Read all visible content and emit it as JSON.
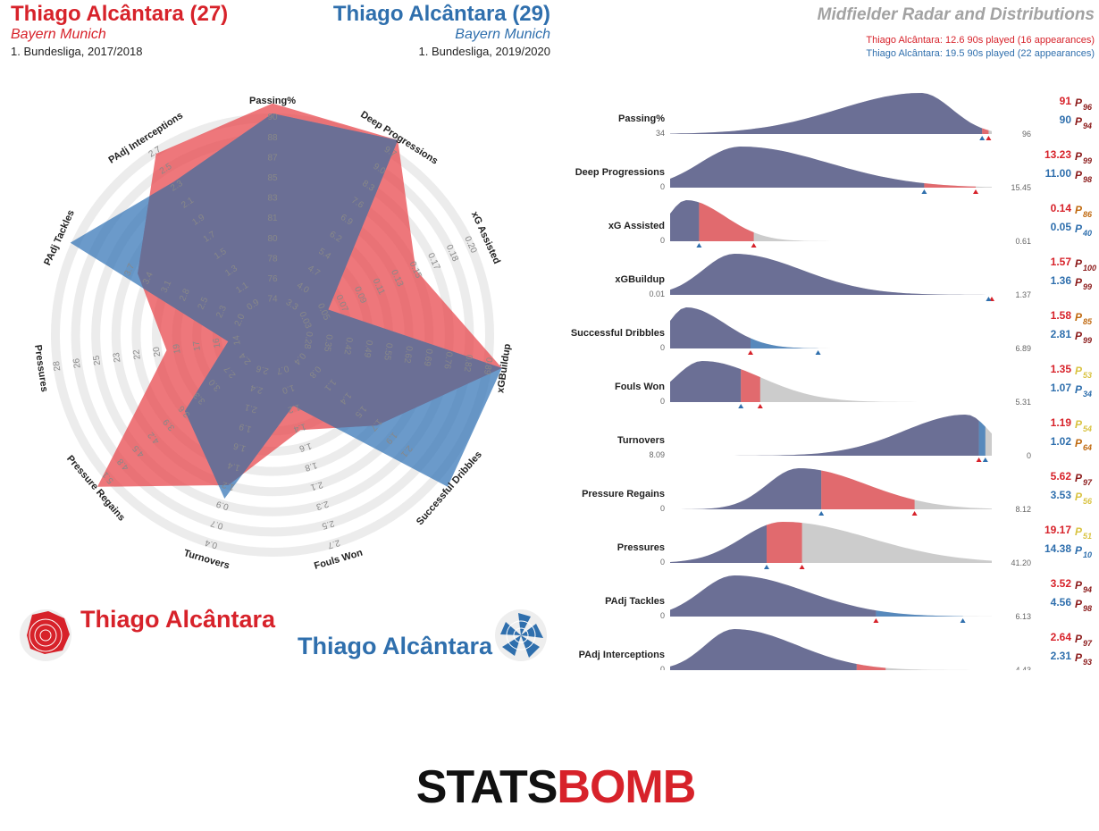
{
  "header": {
    "player1_name": "Thiago Alcântara (27)",
    "player1_club": "Bayern Munich",
    "player1_competition": "1. Bundesliga, 2017/2018",
    "player2_name": "Thiago Alcântara (29)",
    "player2_club": "Bayern Munich",
    "player2_competition": "1. Bundesliga, 2019/2020",
    "title": "Midfielder Radar and Distributions",
    "player1_minutes": "Thiago Alcântara: 12.6 90s played (16 appearances)",
    "player2_minutes": "Thiago Alcântara: 19.5 90s played (22 appearances)"
  },
  "legend": {
    "player1_label": "Thiago Alcântara",
    "player2_label": "Thiago Alcântara"
  },
  "footer": {
    "logo_text": "STATSBOMB"
  },
  "colors": {
    "player1": "#e8494f",
    "player2": "#3a78b8",
    "overlap": "#6b6f95",
    "text_p1": "#d7222a",
    "text_p2": "#2f6fad",
    "dist_grey": "#cccccc"
  },
  "chart_data": [
    {
      "type": "radar",
      "metrics": [
        "Passing%",
        "Deep Progressions",
        "xG Assisted",
        "xGBuildup",
        "Successful Dribbles",
        "Fouls Won",
        "Turnovers",
        "Pressure Regains",
        "Pressures",
        "PAdj Tackles",
        "PAdj Interceptions"
      ],
      "scales": [
        [
          "74",
          "76",
          "78",
          "80",
          "81",
          "83",
          "85",
          "87",
          "88",
          "90"
        ],
        [
          "3.3",
          "4.0",
          "4.7",
          "5.4",
          "6.2",
          "6.9",
          "7.6",
          "8.3",
          "9.0",
          "9.7"
        ],
        [
          "0.03",
          "0.05",
          "0.07",
          "0.09",
          "0.11",
          "0.13",
          "0.15",
          "0.17",
          "0.18",
          "0.20"
        ],
        [
          "0.28",
          "0.35",
          "0.42",
          "0.49",
          "0.55",
          "0.62",
          "0.69",
          "0.76",
          "0.82",
          "0.89"
        ],
        [
          "0.4",
          "0.8",
          "1.1",
          "1.4",
          "1.5",
          "1.7",
          "1.9",
          "2.1",
          "",
          ""
        ],
        [
          "0.7",
          "1.0",
          "1.2",
          "1.4",
          "1.6",
          "1.8",
          "2.1",
          "2.3",
          "2.5",
          "2.7"
        ],
        [
          "2.6",
          "2.4",
          "2.1",
          "1.9",
          "1.6",
          "1.4",
          "1.2",
          "0.9",
          "0.7",
          "0.4"
        ],
        [
          "2.4",
          "2.7",
          "3.0",
          "3.3",
          "3.6",
          "3.9",
          "4.2",
          "4.5",
          "4.8",
          "5.1"
        ],
        [
          "14",
          "16",
          "17",
          "19",
          "20",
          "22",
          "23",
          "25",
          "26",
          "28"
        ],
        [
          "2.0",
          "2.3",
          "2.5",
          "2.8",
          "3.1",
          "3.4",
          "3.7",
          "",
          "",
          ""
        ],
        [
          "0.9",
          "1.1",
          "1.3",
          "1.5",
          "1.7",
          "1.9",
          "2.1",
          "2.3",
          "2.5",
          "2.7"
        ]
      ],
      "series": [
        {
          "name": "Thiago Alcântara (27)",
          "values": [
            91,
            13.23,
            0.14,
            1.57,
            1.58,
            1.35,
            1.19,
            5.62,
            19.17,
            3.52,
            2.64
          ]
        },
        {
          "name": "Thiago Alcântara (29)",
          "values": [
            90,
            11.0,
            0.05,
            1.36,
            2.81,
            1.07,
            1.02,
            3.53,
            14.38,
            4.56,
            2.31
          ]
        }
      ]
    },
    {
      "type": "area",
      "rows": [
        {
          "metric": "Passing%",
          "min": "34",
          "max": "96",
          "p1": "91",
          "p1_pct": "96",
          "p2": "90",
          "p2_pct": "94"
        },
        {
          "metric": "Deep Progressions",
          "min": "0",
          "max": "15.45",
          "p1": "13.23",
          "p1_pct": "99",
          "p2": "11.00",
          "p2_pct": "98"
        },
        {
          "metric": "xG Assisted",
          "min": "0",
          "max": "0.61",
          "p1": "0.14",
          "p1_pct": "86",
          "p2": "0.05",
          "p2_pct": "40"
        },
        {
          "metric": "xGBuildup",
          "min": "0.01",
          "max": "1.37",
          "p1": "1.57",
          "p1_pct": "100",
          "p2": "1.36",
          "p2_pct": "99"
        },
        {
          "metric": "Successful Dribbles",
          "min": "0",
          "max": "6.89",
          "p1": "1.58",
          "p1_pct": "85",
          "p2": "2.81",
          "p2_pct": "99"
        },
        {
          "metric": "Fouls Won",
          "min": "0",
          "max": "5.31",
          "p1": "1.35",
          "p1_pct": "53",
          "p2": "1.07",
          "p2_pct": "34"
        },
        {
          "metric": "Turnovers",
          "min": "8.09",
          "max": "0",
          "p1": "1.19",
          "p1_pct": "54",
          "p2": "1.02",
          "p2_pct": "64"
        },
        {
          "metric": "Pressure Regains",
          "min": "0",
          "max": "8.12",
          "p1": "5.62",
          "p1_pct": "97",
          "p2": "3.53",
          "p2_pct": "56"
        },
        {
          "metric": "Pressures",
          "min": "0",
          "max": "41.20",
          "p1": "19.17",
          "p1_pct": "51",
          "p2": "14.38",
          "p2_pct": "10"
        },
        {
          "metric": "PAdj Tackles",
          "min": "0",
          "max": "6.13",
          "p1": "3.52",
          "p1_pct": "94",
          "p2": "4.56",
          "p2_pct": "98"
        },
        {
          "metric": "PAdj Interceptions",
          "min": "0",
          "max": "4.43",
          "p1": "2.64",
          "p1_pct": "97",
          "p2": "2.31",
          "p2_pct": "93"
        }
      ]
    }
  ]
}
